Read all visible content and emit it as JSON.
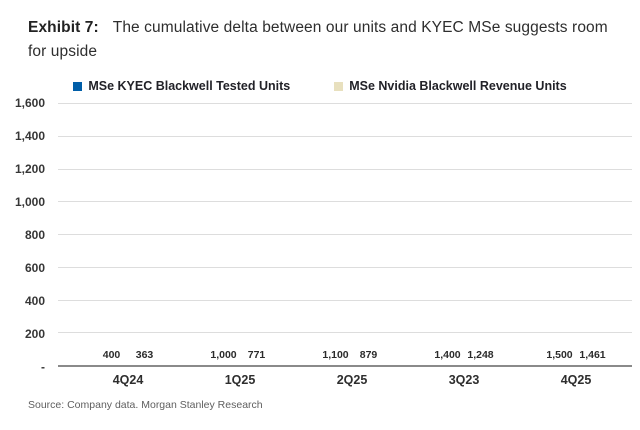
{
  "title": {
    "prefix": "Exhibit 7:",
    "text": "The cumulative delta between our units and KYEC MSe suggests room for upside"
  },
  "legend": [
    {
      "label": "MSe KYEC Blackwell Tested Units",
      "color": "#005EA8"
    },
    {
      "label": "MSe Nvidia Blackwell Revenue Units",
      "color": "#E8E0BE"
    }
  ],
  "source": "Source: Company data. Morgan Stanley Research",
  "colors": {
    "series_blue": "#005EA8",
    "series_beige": "#E8E0BE",
    "gridline": "#DDDDDD",
    "axis_line": "#8A8A8A",
    "tick_text": "#363636",
    "title_text": "#2E2E2E",
    "source_text": "#5F5F5F"
  },
  "chart_data": {
    "type": "bar",
    "title": "Exhibit 7: The cumulative delta between our units and KYEC MSe suggests room for upside",
    "categories": [
      "4Q24",
      "1Q25",
      "2Q25",
      "3Q23",
      "4Q25"
    ],
    "series": [
      {
        "name": "MSe KYEC Blackwell Tested Units",
        "color": "#005EA8",
        "values": [
          400,
          1000,
          1100,
          1400,
          1500
        ],
        "labels": [
          "400",
          "1,000",
          "1,100",
          "1,400",
          "1,500"
        ]
      },
      {
        "name": "MSe Nvidia Blackwell Revenue Units",
        "color": "#E8E0BE",
        "values": [
          363,
          771,
          879,
          1248,
          1461
        ],
        "labels": [
          "363",
          "771",
          "879",
          "1,248",
          "1,461"
        ]
      }
    ],
    "xlabel": "",
    "ylabel": "",
    "ylim": [
      0,
      1600
    ],
    "grid": true,
    "legend_position": "top",
    "y_ticks": [
      {
        "value": 1600,
        "label": "1,600"
      },
      {
        "value": 1400,
        "label": "1,400"
      },
      {
        "value": 1200,
        "label": "1,200"
      },
      {
        "value": 1000,
        "label": "1,000"
      },
      {
        "value": 800,
        "label": "800"
      },
      {
        "value": 600,
        "label": "600"
      },
      {
        "value": 400,
        "label": "400"
      },
      {
        "value": 200,
        "label": "200"
      },
      {
        "value": 0,
        "label": "-"
      }
    ]
  }
}
